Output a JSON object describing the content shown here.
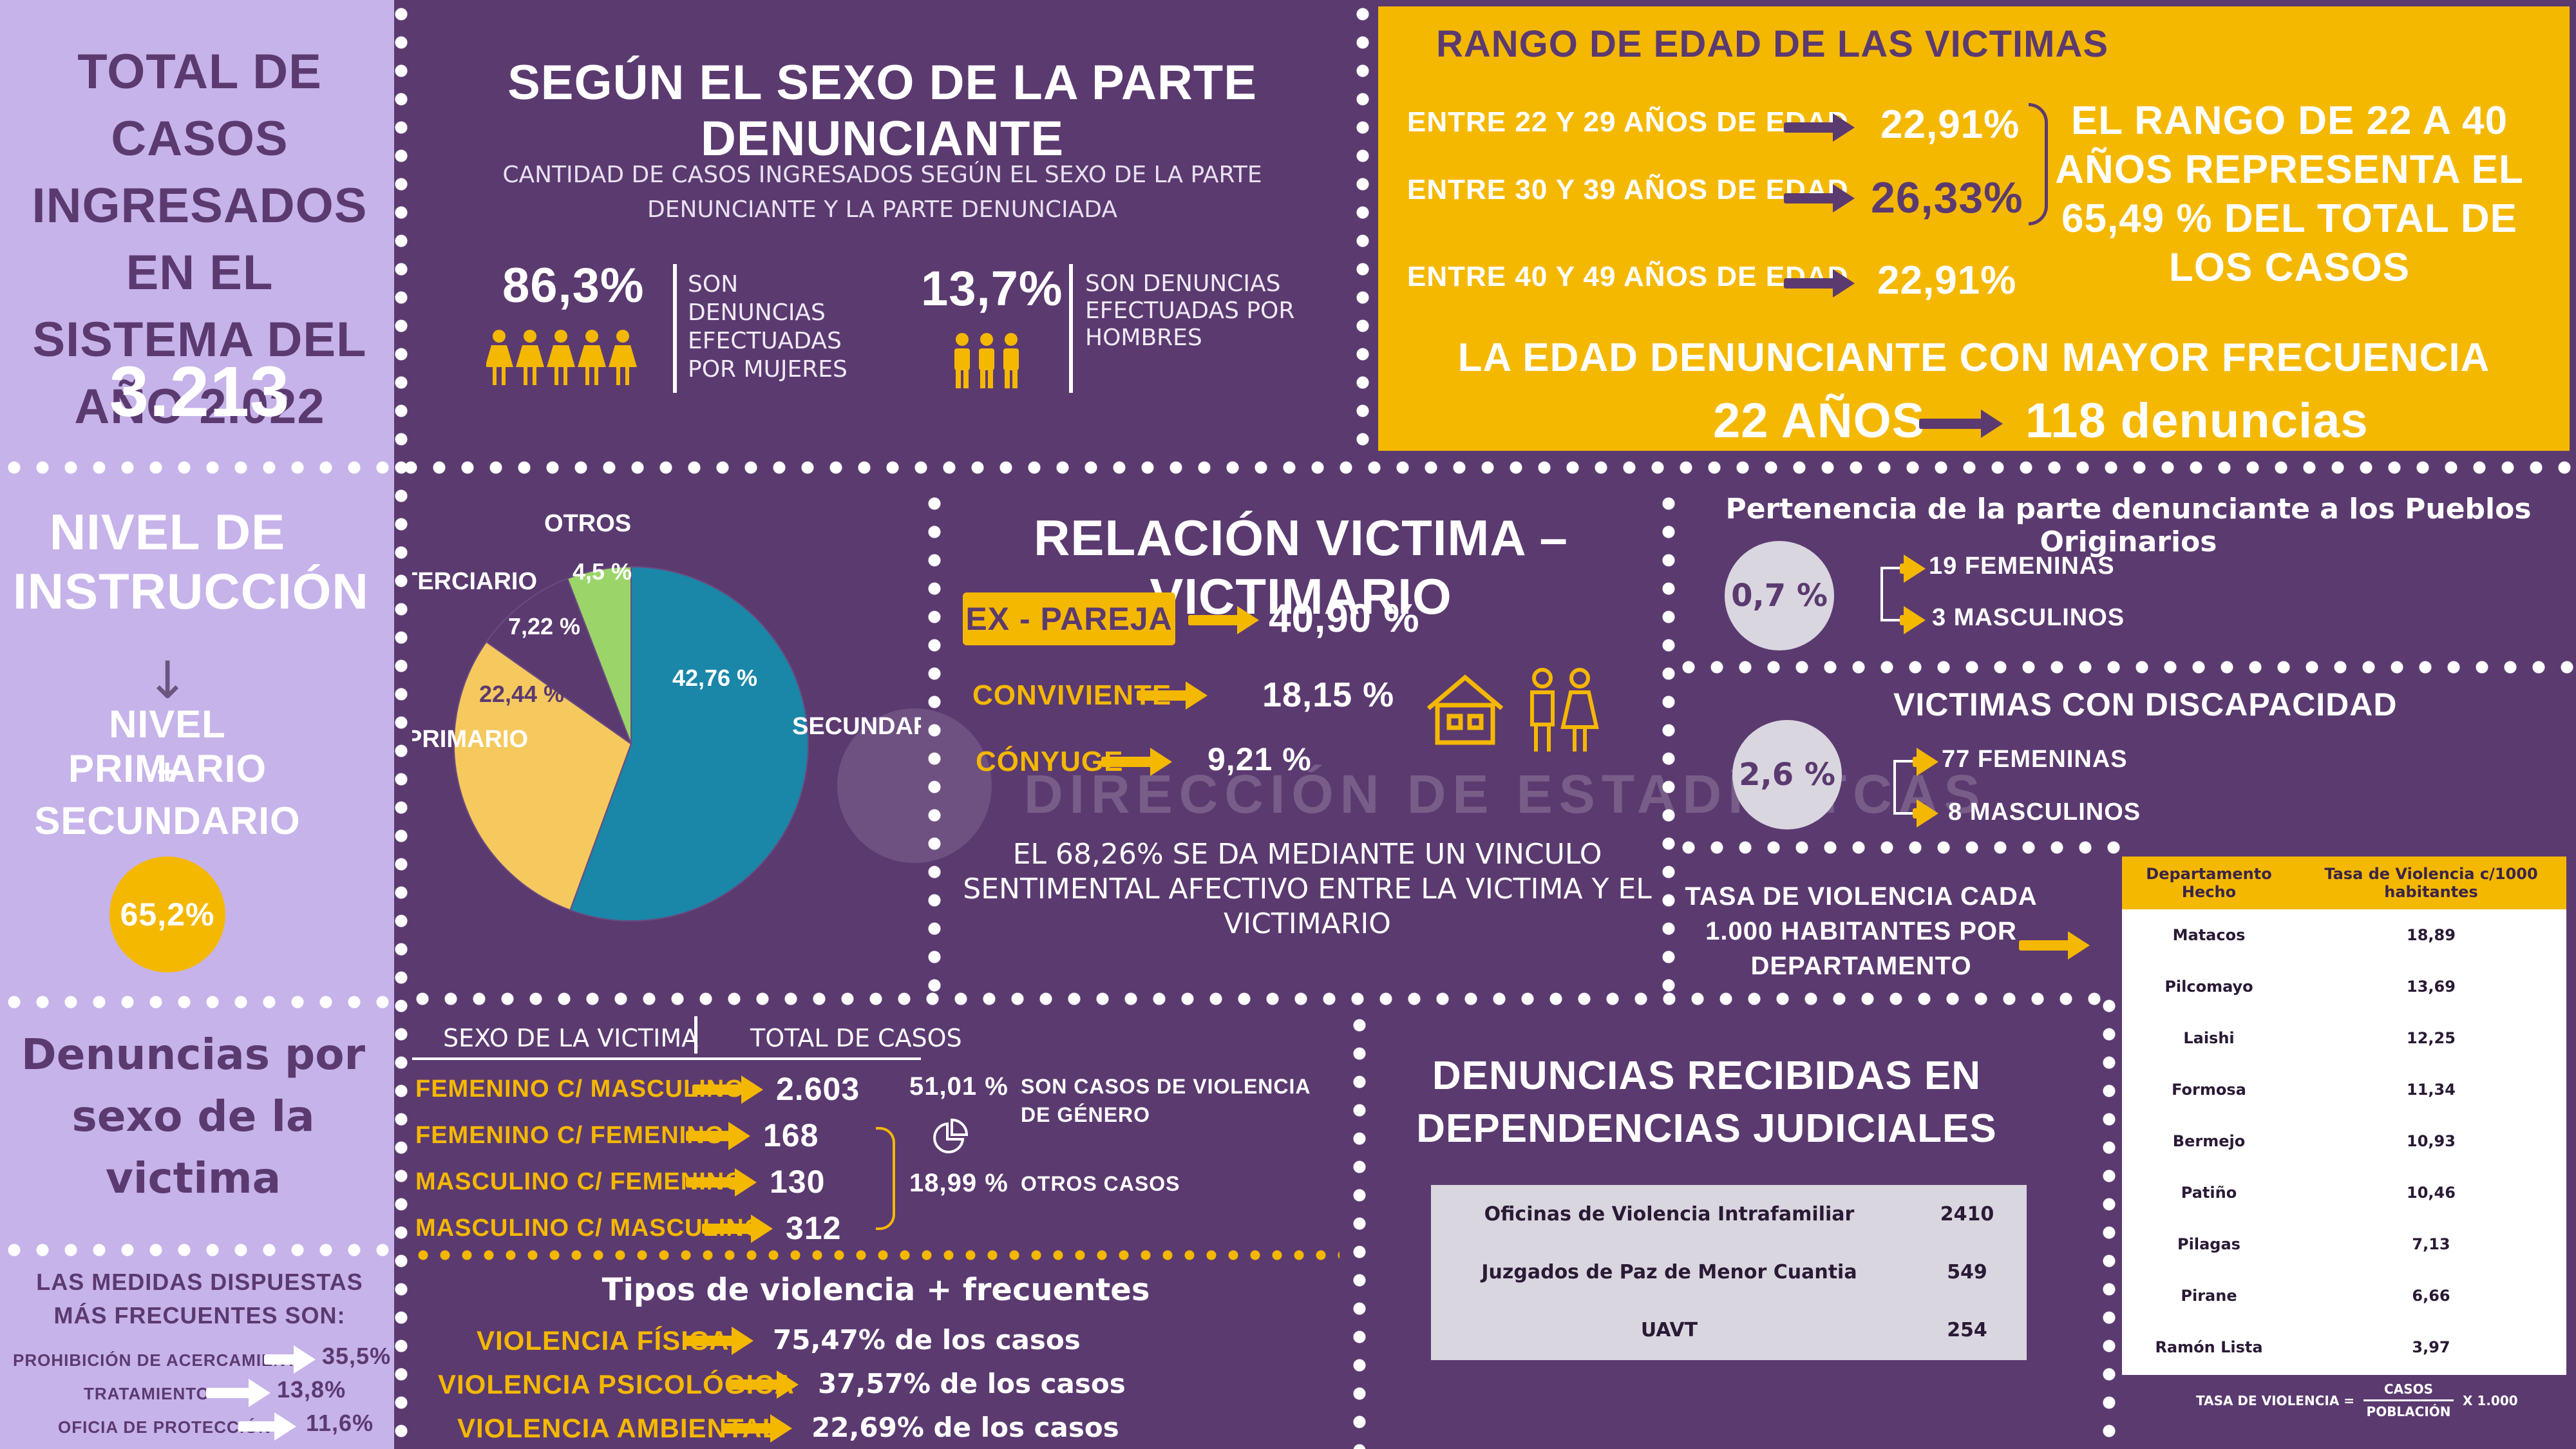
{
  "colors": {
    "background": "#5b3a70",
    "lavender": "#c6b3ea",
    "yellow": "#f5b800",
    "teal": "#1a86a8",
    "pie_yellow": "#f6c95e",
    "green": "#9bd56a",
    "dark_purple": "#5b3a70"
  },
  "total": {
    "title": "TOTAL DE CASOS INGRESADOS EN EL SISTEMA DEL AÑO 2.022",
    "value": "3.213"
  },
  "sexo": {
    "title": "SEGÚN EL SEXO DE LA  PARTE DENUNCIANTE",
    "subtitle": "CANTIDAD DE CASOS INGRESADOS SEGÚN EL SEXO DE LA PARTE DENUNCIANTE Y LA PARTE DENUNCIADA",
    "women_pct": "86,3%",
    "women_text": "SON DENUNCIAS EFECTUADAS POR MUJERES",
    "men_pct": "13,7%",
    "men_text": "SON DENUNCIAS EFECTUADAS POR HOMBRES",
    "women_icon": "woman-icon",
    "men_icon": "man-icon"
  },
  "edad": {
    "title": "RANGO DE EDAD DE LAS VICTIMAS",
    "rows": [
      {
        "label": "ENTRE 22 Y 29 AÑOS DE EDAD",
        "value": "22,91%"
      },
      {
        "label": "ENTRE 30 Y 39 AÑOS DE EDAD",
        "value": "26,33%"
      },
      {
        "label": "ENTRE 40 Y 49 AÑOS DE EDAD",
        "value": "22,91%"
      }
    ],
    "summary": "EL RANGO DE 22 A 40 AÑOS REPRESENTA EL 65,49 % DEL TOTAL DE LOS CASOS",
    "freq_title": "LA EDAD DENUNCIANTE CON MAYOR FRECUENCIA",
    "freq_age": "22 AÑOS",
    "freq_count": "118 denuncias"
  },
  "instruccion": {
    "title": "NIVEL DE INSTRUCCIÓN",
    "arrow": "↓",
    "line1": "NIVEL PRIMARIO",
    "plus": "+",
    "line2": "SECUNDARIO",
    "value": "65,2%"
  },
  "chart_data": {
    "type": "pie",
    "slices": [
      {
        "label": "SECUNDARIA",
        "pct_label": "42,76 %",
        "value": 42.76,
        "color": "#1a86a8"
      },
      {
        "label": "PRIMARIO",
        "pct_label": "22,44 %",
        "value": 22.44,
        "color": "#f6c95e"
      },
      {
        "label": "TERCIARIO",
        "pct_label": "7,22 %",
        "value": 7.22,
        "color": "#5b3a70"
      },
      {
        "label": "OTROS",
        "pct_label": "4,5 %",
        "value": 4.5,
        "color": "#9bd56a"
      }
    ]
  },
  "relacion": {
    "title": "RELACIÓN VICTIMA – VICTIMARIO",
    "rows": [
      {
        "label": "EX - PAREJA",
        "value": "40,90 %"
      },
      {
        "label": "CONVIVIENTE",
        "value": "18,15 %"
      },
      {
        "label": "CÓNYUGE",
        "value": "9,21 %"
      }
    ],
    "note": "EL 68,26% SE DA MEDIANTE UN VINCULO SENTIMENTAL AFECTIVO ENTRE LA VICTIMA Y EL VICTIMARIO",
    "icons": [
      "house-icon",
      "couple-icon"
    ]
  },
  "watermark": "DIRECCIÓN DE ESTADÍSITCAS",
  "pueblos": {
    "title": "Pertenencia de la parte denunciante a los Pueblos Originarios",
    "value": "0,7 %",
    "fem": "19 FEMENINAS",
    "masc": "3 MASCULINOS"
  },
  "discapacidad": {
    "title": "VICTIMAS CON DISCAPACIDAD",
    "value": "2,6 %",
    "fem": "77 FEMENINAS",
    "masc": "8 MASCULINOS"
  },
  "tasa": {
    "title": "TASA DE VIOLENCIA CADA 1.000 HABITANTES POR DEPARTAMENTO",
    "headers": [
      "Departamento Hecho",
      "Tasa de Violencia c/1000 habitantes"
    ],
    "rows": [
      [
        "Matacos",
        "18,89"
      ],
      [
        "Pilcomayo",
        "13,69"
      ],
      [
        "Laishi",
        "12,25"
      ],
      [
        "Formosa",
        "11,34"
      ],
      [
        "Bermejo",
        "10,93"
      ],
      [
        "Patiño",
        "10,46"
      ],
      [
        "Pilagas",
        "7,13"
      ],
      [
        "Pirane",
        "6,66"
      ],
      [
        "Ramón Lista",
        "3,97"
      ]
    ],
    "formula_left": "TASA DE VIOLENCIA =",
    "formula_num": "CASOS",
    "formula_den": "POBLACIÓN",
    "formula_right": "X 1.000"
  },
  "denuncias_sexo": {
    "title": "Denuncias por sexo de la victima"
  },
  "medidas": {
    "title": "LAS MEDIDAS DISPUESTAS MÁS FRECUENTES SON:",
    "rows": [
      {
        "label": "PROHIBICIÓN DE ACERCAMIENTO",
        "value": "35,5%"
      },
      {
        "label": "TRATAMIENTO",
        "value": "13,8%"
      },
      {
        "label": "OFICIA DE PROTECCIÓN",
        "value": "11,6%"
      }
    ]
  },
  "casos_sexo": {
    "header1": "SEXO DE LA VICTIMA",
    "header2": "TOTAL DE CASOS",
    "rows": [
      {
        "label": "FEMENINO C/ MASCULINO",
        "value": "2.603"
      },
      {
        "label": "FEMENINO C/ FEMENINO",
        "value": "168"
      },
      {
        "label": "MASCULINO C/ FEMENINO",
        "value": "130"
      },
      {
        "label": "MASCULINO C/ MASCULINO",
        "value": "312"
      }
    ],
    "genero_pct": "51,01 %",
    "genero_text": "SON CASOS DE VIOLENCIA DE GÉNERO",
    "otros_pct": "18,99 %",
    "otros_text": "OTROS CASOS",
    "icon": "pie-chart-icon"
  },
  "tipos": {
    "title": "Tipos de violencia + frecuentes",
    "rows": [
      {
        "label": "VIOLENCIA FÍSICA",
        "value": "75,47% de los casos"
      },
      {
        "label": "VIOLENCIA PSICOLÓGICA",
        "value": "37,57% de los casos"
      },
      {
        "label": "VIOLENCIA AMBIENTAL",
        "value": "22,69% de los casos"
      }
    ]
  },
  "dependencias": {
    "title": "DENUNCIAS RECIBIDAS EN DEPENDENCIAS JUDICIALES",
    "rows": [
      [
        "Oficinas de Violencia Intrafamiliar",
        "2410"
      ],
      [
        "Juzgados de Paz de Menor Cuantia",
        "549"
      ],
      [
        "UAVT",
        "254"
      ]
    ]
  }
}
